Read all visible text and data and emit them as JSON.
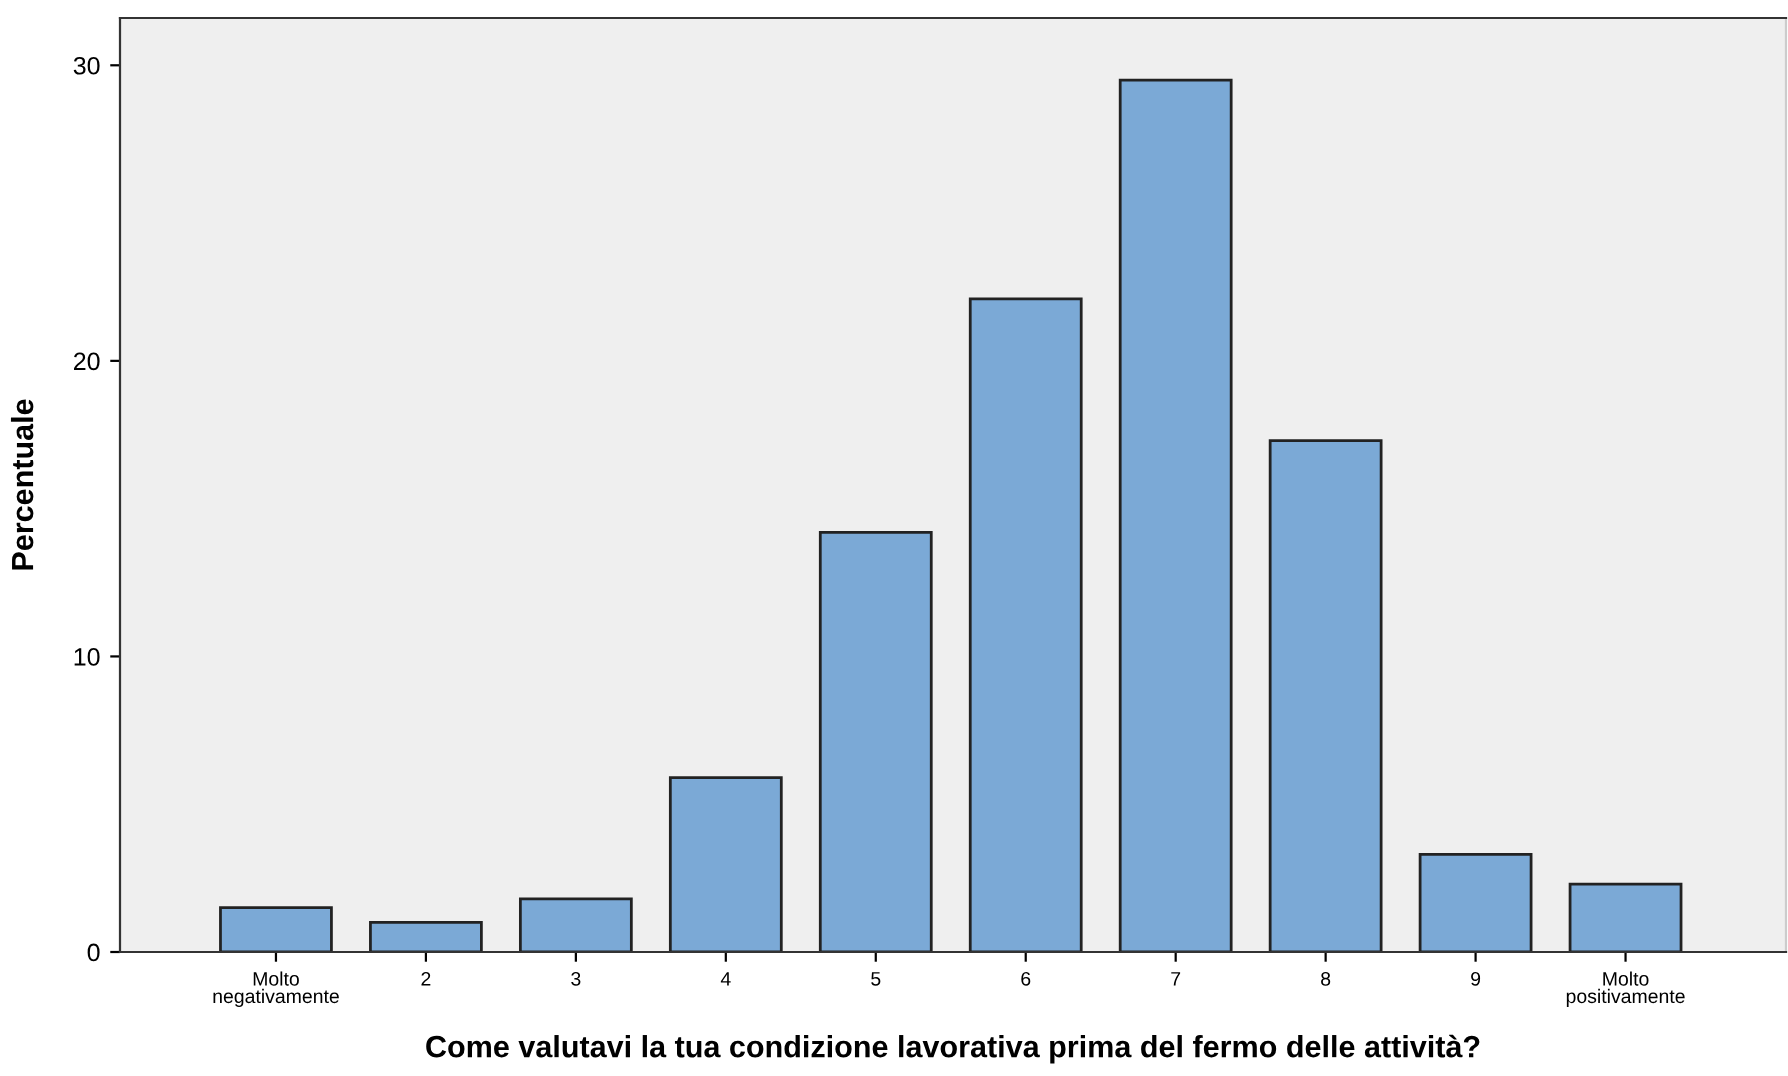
{
  "chart_data": {
    "type": "bar",
    "xlabel": "Come valutavi la tua condizione lavorativa prima del fermo delle attività?",
    "ylabel": "Percentuale",
    "categories": [
      "Molto\nnegativamente",
      "2",
      "3",
      "4",
      "5",
      "6",
      "7",
      "8",
      "9",
      "Molto\npositivamente"
    ],
    "values": [
      1.5,
      1.0,
      1.8,
      5.9,
      14.2,
      22.1,
      29.5,
      17.3,
      3.3,
      2.3
    ],
    "color": "#7ba9d6",
    "ylim": [
      0,
      31.6
    ],
    "yticks": [
      0,
      10,
      20,
      30
    ],
    "grid": false
  }
}
